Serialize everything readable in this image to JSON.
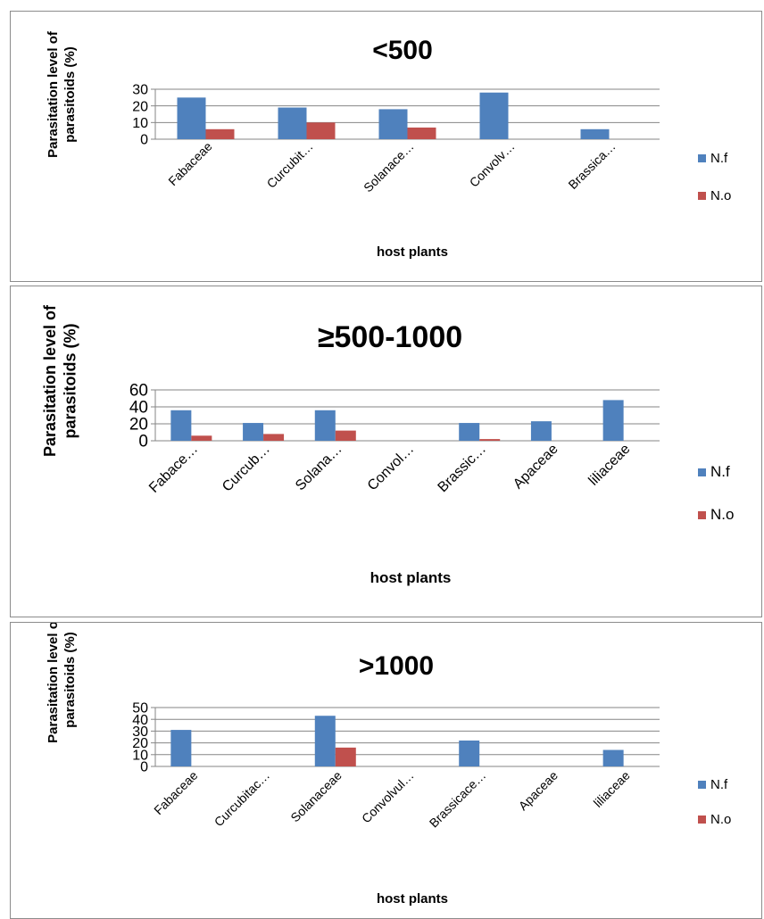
{
  "colors": {
    "nf": "#4f81bd",
    "no": "#c0504d",
    "grid": "#868686"
  },
  "chart_data": [
    {
      "type": "bar",
      "title": "<500",
      "ylabel": "Parasitation level of parasitoids (%)",
      "xlabel": "host plants",
      "categories": [
        "Fabaceae",
        "Curcubit…",
        "Solanace…",
        "Convolv…",
        "Brassica…"
      ],
      "ylim": [
        0,
        30
      ],
      "yticks": [
        0,
        10,
        20,
        30
      ],
      "grid": true,
      "legend_position": "right",
      "series": [
        {
          "name": "N.f",
          "values": [
            25,
            19,
            18,
            28,
            6
          ]
        },
        {
          "name": "N.o",
          "values": [
            6,
            10,
            7,
            0,
            0
          ]
        }
      ]
    },
    {
      "type": "bar",
      "title": "≥500-1000",
      "ylabel": "Parasitation level of parasitoids (%)",
      "xlabel": "host plants",
      "categories": [
        "Fabace…",
        "Curcub…",
        "Solana…",
        "Convol…",
        "Brassic…",
        "Apaceae",
        "liliaceae"
      ],
      "ylim": [
        0,
        60
      ],
      "yticks": [
        0,
        20,
        40,
        60
      ],
      "grid": true,
      "legend_position": "right",
      "series": [
        {
          "name": "N.f",
          "values": [
            36,
            21,
            36,
            0,
            21,
            23,
            48
          ]
        },
        {
          "name": "N.o",
          "values": [
            6,
            8,
            12,
            0,
            2,
            0,
            0
          ]
        }
      ]
    },
    {
      "type": "bar",
      "title": ">1000",
      "ylabel": "Parasitation level of parasitoids (%)",
      "xlabel": "host plants",
      "categories": [
        "Fabaceae",
        "Curcubitac…",
        "Solanaceae",
        "Convolvul…",
        "Brassicace…",
        "Apaceae",
        "liliaceae"
      ],
      "ylim": [
        0,
        50
      ],
      "yticks": [
        0,
        10,
        20,
        30,
        40,
        50
      ],
      "grid": true,
      "legend_position": "right",
      "series": [
        {
          "name": "N.f",
          "values": [
            31,
            0,
            43,
            0,
            22,
            0,
            14
          ]
        },
        {
          "name": "N.o",
          "values": [
            0,
            0,
            16,
            0,
            0,
            0,
            0
          ]
        }
      ]
    }
  ]
}
